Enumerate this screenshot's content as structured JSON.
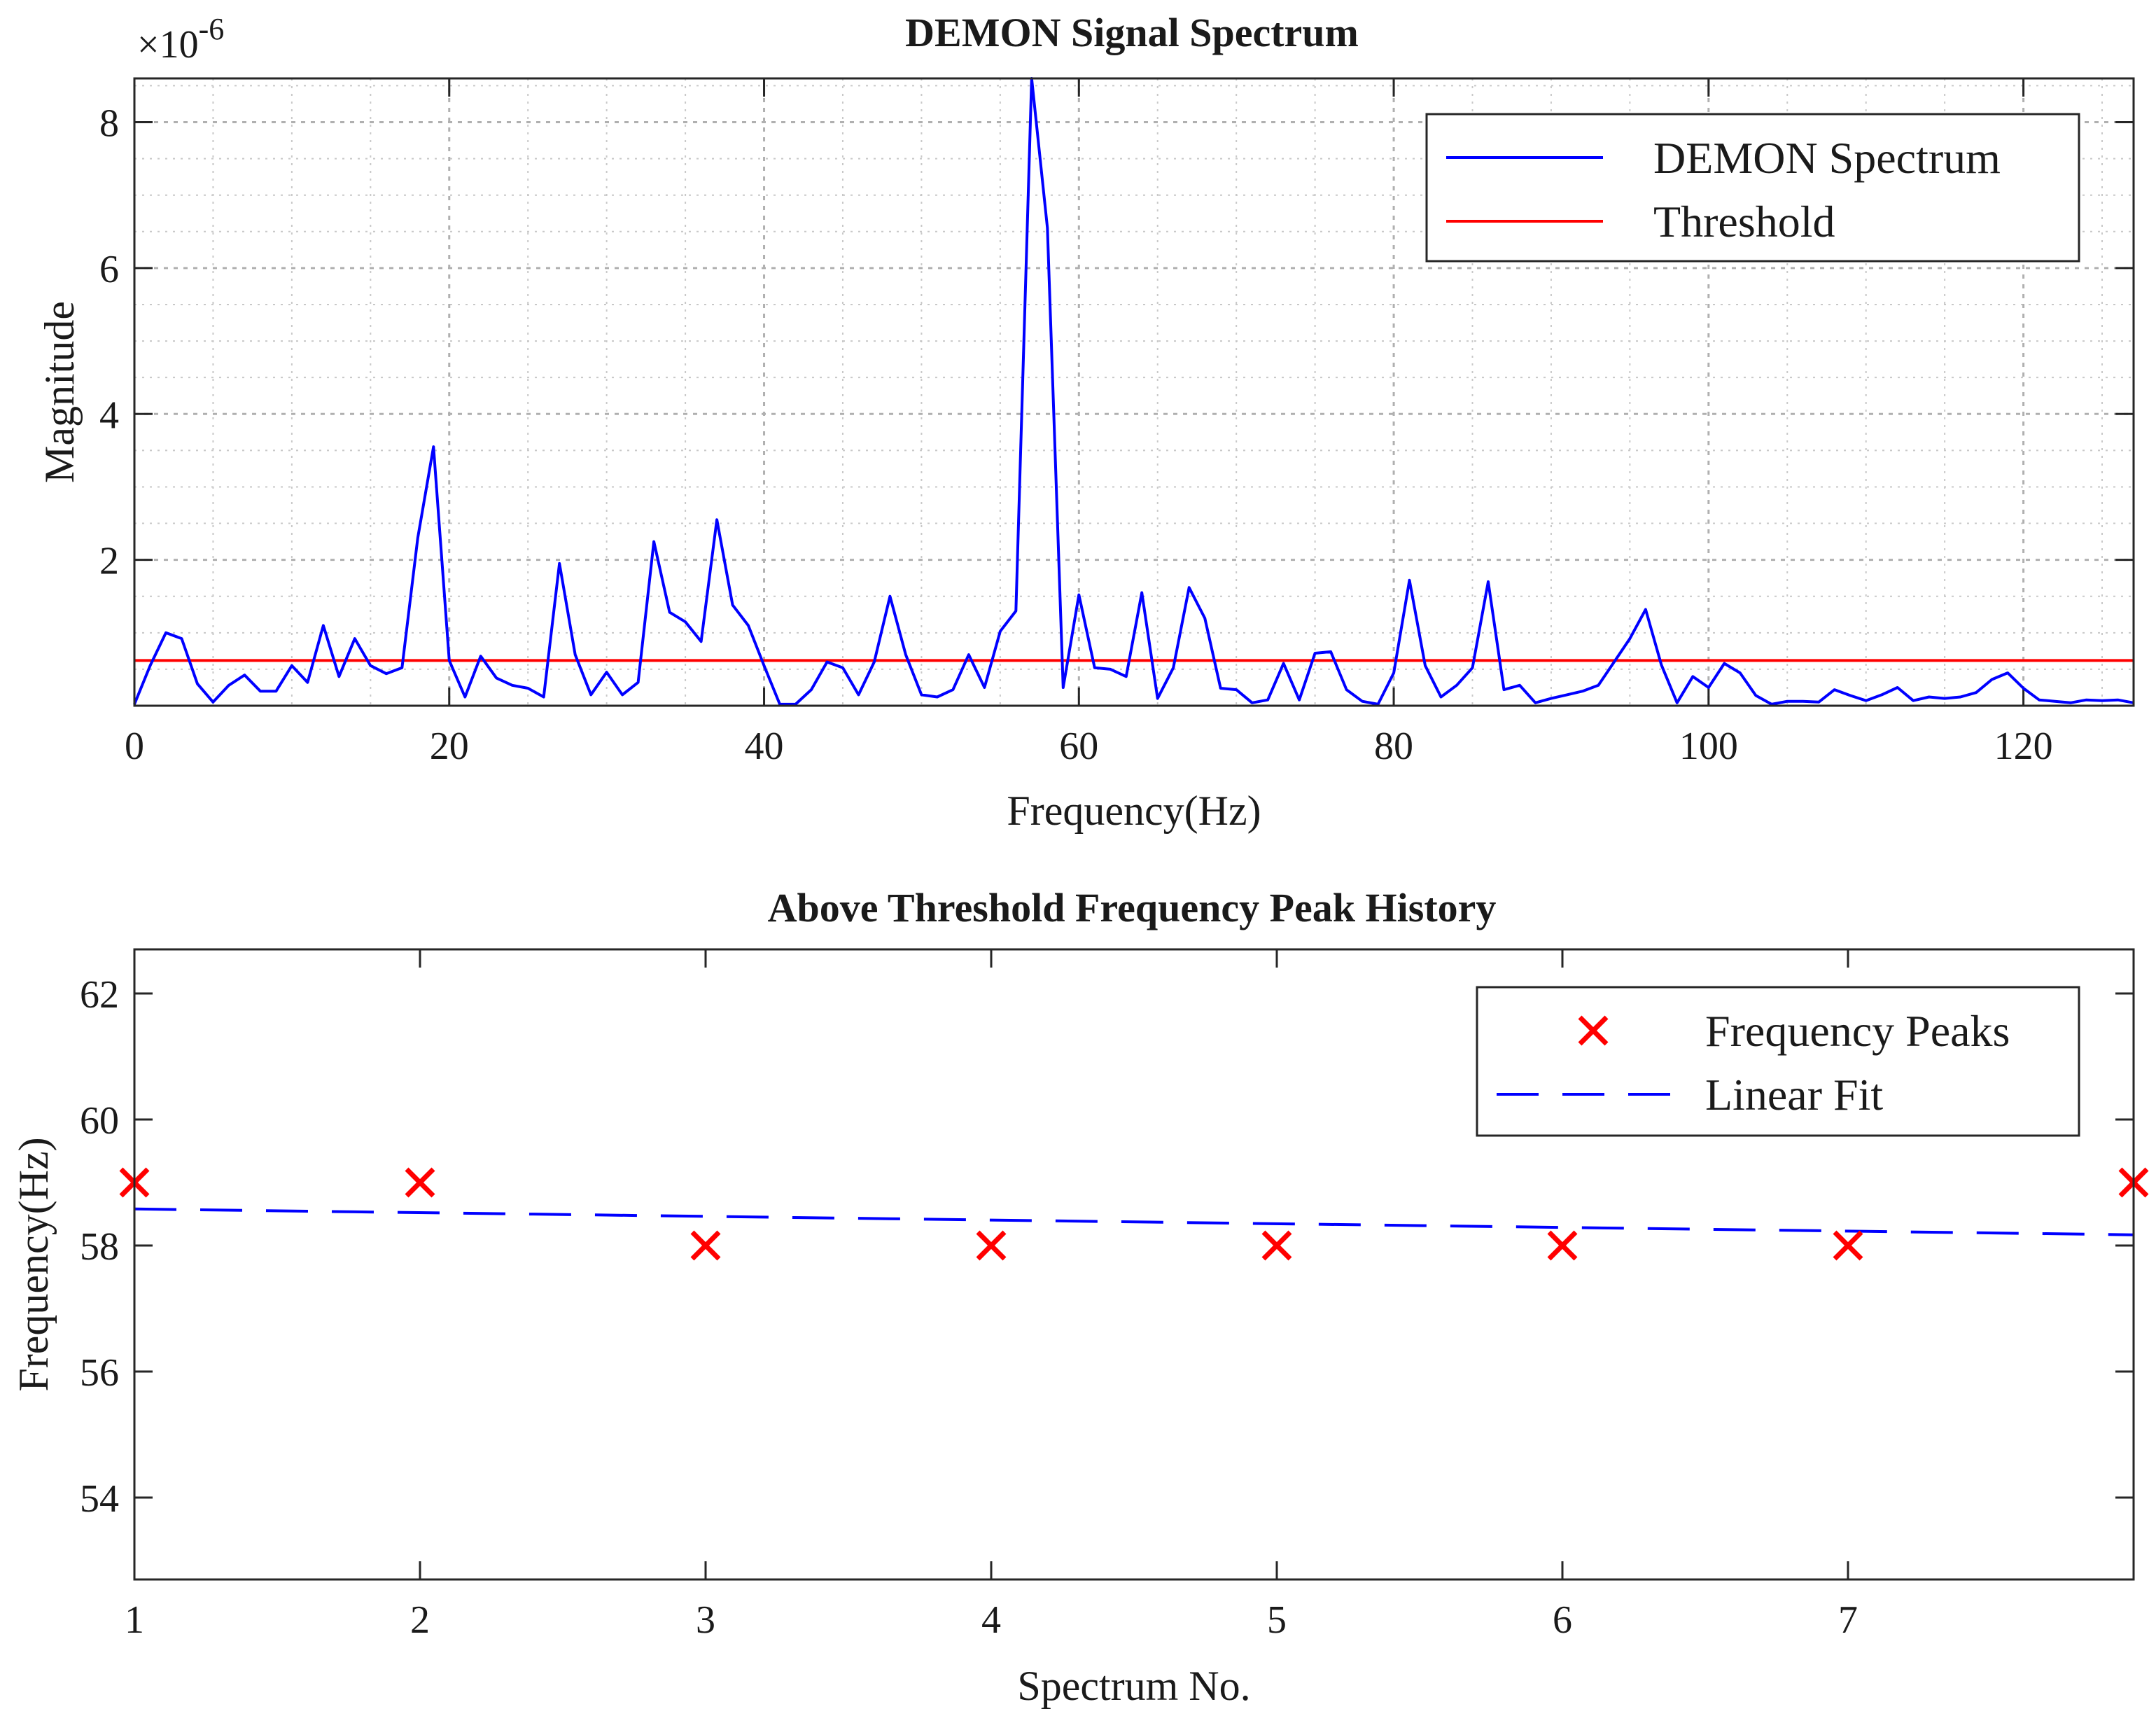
{
  "colors": {
    "spectrum": "#0000ff",
    "threshold": "#ff0000",
    "peaks": "#ff0000",
    "fit": "#0000ff",
    "axis": "#262626"
  },
  "chart_data": [
    {
      "type": "line",
      "title": "DEMON Signal Spectrum",
      "xlabel": "Frequency(Hz)",
      "ylabel": "Magnitude",
      "y_exponent_label": "×10",
      "y_exponent_power": "-6",
      "xlim": [
        0,
        127
      ],
      "ylim": [
        0,
        8.6
      ],
      "xticks": [
        0,
        20,
        40,
        60,
        80,
        100,
        120
      ],
      "xtick_labels": [
        "0",
        "20",
        "40",
        "60",
        "80",
        "100",
        "120"
      ],
      "yticks": [
        2,
        4,
        6,
        8
      ],
      "ytick_labels": [
        "2",
        "4",
        "6",
        "8"
      ],
      "grid": true,
      "minor_grid": true,
      "legend_position": "top-right",
      "series": [
        {
          "name": "DEMON Spectrum",
          "x": [
            0,
            1,
            2,
            3,
            4,
            5,
            6,
            7,
            8,
            9,
            10,
            11,
            12,
            13,
            14,
            15,
            16,
            17,
            18,
            19,
            20,
            21,
            22,
            23,
            24,
            25,
            26,
            27,
            28,
            29,
            30,
            31,
            32,
            33,
            34,
            35,
            36,
            37,
            38,
            39,
            40,
            41,
            42,
            43,
            44,
            45,
            46,
            47,
            48,
            49,
            50,
            51,
            52,
            53,
            54,
            55,
            56,
            57,
            58,
            59,
            60,
            61,
            62,
            63,
            64,
            65,
            66,
            67,
            68,
            69,
            70,
            71,
            72,
            73,
            74,
            75,
            76,
            77,
            78,
            79,
            80,
            81,
            82,
            83,
            84,
            85,
            86,
            87,
            88,
            89,
            90,
            91,
            92,
            93,
            94,
            95,
            96,
            97,
            98,
            99,
            100,
            101,
            102,
            103,
            104,
            105,
            106,
            107,
            108,
            109,
            110,
            111,
            112,
            113,
            114,
            115,
            116,
            117,
            118,
            119,
            120,
            121,
            122,
            123,
            124,
            125,
            126,
            127
          ],
          "values": [
            0.02,
            0.55,
            1.0,
            0.92,
            0.3,
            0.05,
            0.28,
            0.42,
            0.2,
            0.2,
            0.55,
            0.32,
            1.1,
            0.4,
            0.92,
            0.55,
            0.44,
            0.52,
            2.3,
            3.55,
            0.62,
            0.12,
            0.68,
            0.38,
            0.28,
            0.24,
            0.12,
            1.95,
            0.7,
            0.15,
            0.46,
            0.15,
            0.32,
            2.25,
            1.28,
            1.15,
            0.88,
            2.55,
            1.38,
            1.1,
            0.55,
            0.02,
            0.02,
            0.22,
            0.6,
            0.52,
            0.15,
            0.6,
            1.5,
            0.7,
            0.15,
            0.12,
            0.22,
            0.7,
            0.25,
            1.02,
            1.3,
            8.6,
            6.55,
            0.25,
            1.52,
            0.52,
            0.5,
            0.4,
            1.55,
            0.1,
            0.52,
            1.62,
            1.2,
            0.24,
            0.22,
            0.04,
            0.08,
            0.58,
            0.08,
            0.72,
            0.74,
            0.22,
            0.06,
            0.02,
            0.45,
            1.72,
            0.55,
            0.12,
            0.28,
            0.52,
            1.7,
            0.22,
            0.28,
            0.04,
            0.1,
            0.15,
            0.2,
            0.28,
            0.6,
            0.92,
            1.32,
            0.56,
            0.04,
            0.4,
            0.25,
            0.58,
            0.45,
            0.14,
            0.02,
            0.06,
            0.06,
            0.05,
            0.22,
            0.14,
            0.07,
            0.15,
            0.25,
            0.07,
            0.12,
            0.1,
            0.12,
            0.18,
            0.36,
            0.45,
            0.24,
            0.08,
            0.06,
            0.04,
            0.08,
            0.07,
            0.08,
            0.04
          ]
        },
        {
          "name": "Threshold",
          "x": [
            0,
            127
          ],
          "values": [
            0.62,
            0.62
          ]
        }
      ]
    },
    {
      "type": "scatter",
      "title": "Above Threshold Frequency Peak History",
      "xlabel": "Spectrum No.",
      "ylabel": "Frequency(Hz)",
      "xlim": [
        1,
        8
      ],
      "ylim": [
        52.7,
        62.7
      ],
      "xticks": [
        1,
        2,
        3,
        4,
        5,
        6,
        7
      ],
      "xtick_labels": [
        "1",
        "2",
        "3",
        "4",
        "5",
        "6",
        "7"
      ],
      "yticks": [
        54,
        56,
        58,
        60,
        62
      ],
      "ytick_labels": [
        "54",
        "56",
        "58",
        "60",
        "62"
      ],
      "grid": false,
      "legend_position": "top-right",
      "series": [
        {
          "name": "Frequency Peaks",
          "marker": "x",
          "x": [
            1,
            2,
            3,
            4,
            5,
            6,
            7,
            8
          ],
          "values": [
            59,
            59,
            58,
            58,
            58,
            58,
            58,
            59
          ]
        },
        {
          "name": "Linear Fit",
          "style": "dashed",
          "x": [
            1,
            8
          ],
          "values": [
            58.58,
            58.17
          ]
        }
      ]
    }
  ]
}
